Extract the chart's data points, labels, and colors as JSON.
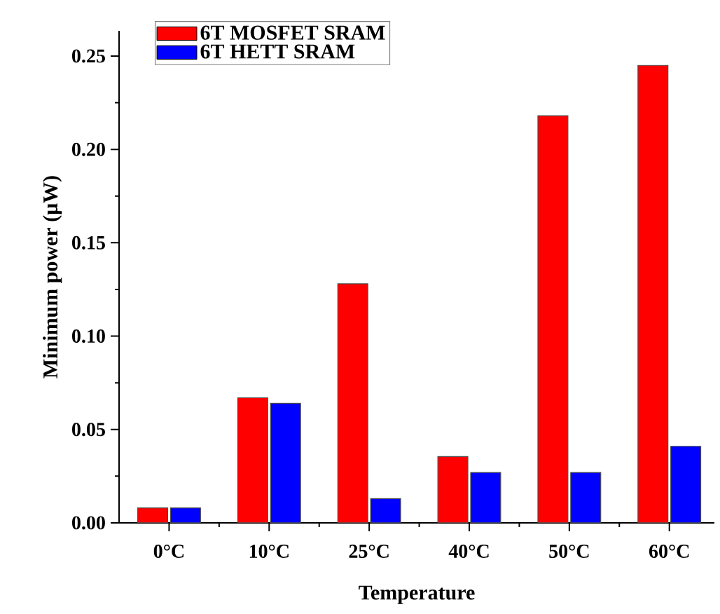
{
  "chart_data": {
    "type": "bar",
    "xlabel": "Temperature",
    "ylabel": "Minimum power (μW)",
    "categories": [
      "0°C",
      "10°C",
      "25°C",
      "40°C",
      "50°C",
      "60°C"
    ],
    "series": [
      {
        "name": "6T MOSFET SRAM",
        "color": "#ff0000",
        "values": [
          0.008,
          0.067,
          0.128,
          0.0355,
          0.218,
          0.245
        ]
      },
      {
        "name": "6T HETT SRAM",
        "color": "#0000ff",
        "values": [
          0.008,
          0.064,
          0.013,
          0.027,
          0.027,
          0.041
        ]
      }
    ],
    "ylim": [
      0,
      0.2635
    ],
    "yticks": [
      {
        "value": 0,
        "label": "0.00"
      },
      {
        "value": 0.05,
        "label": "0.05"
      },
      {
        "value": 0.1,
        "label": "0.10"
      },
      {
        "value": 0.15,
        "label": "0.15"
      },
      {
        "value": 0.2,
        "label": "0.20"
      },
      {
        "value": 0.25,
        "label": "0.25"
      }
    ],
    "legend": "top left"
  }
}
